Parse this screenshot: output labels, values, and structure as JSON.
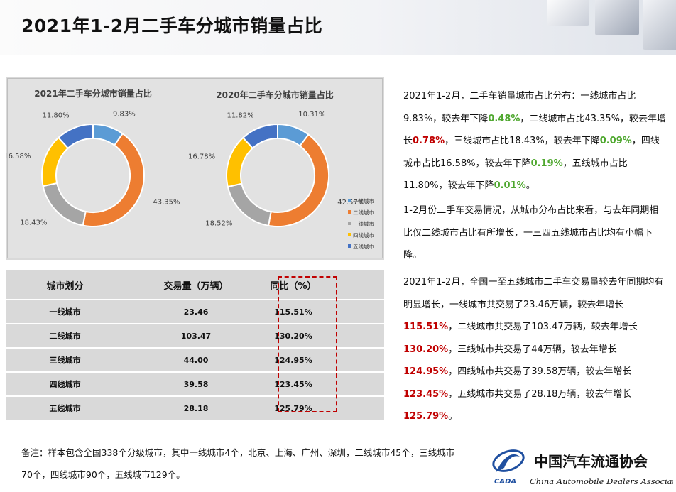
{
  "page": {
    "title": "2021年1-2月二手车分城市销量占比"
  },
  "colors": {
    "tier1": "#5b9bd5",
    "tier2": "#ed7d31",
    "tier3": "#a5a5a5",
    "tier4": "#ffc000",
    "tier5": "#4472c4",
    "green": "#4ea72e",
    "red": "#c00000"
  },
  "chart_data": [
    {
      "type": "pie",
      "title": "2021年二手车分城市销量占比",
      "categories": [
        "一线城市",
        "二线城市",
        "三线城市",
        "四线城市",
        "五线城市"
      ],
      "values": [
        9.83,
        43.35,
        18.43,
        16.58,
        11.8
      ],
      "labels": [
        "9.83%",
        "43.35%",
        "18.43%",
        "16.58%",
        "11.80%"
      ]
    },
    {
      "type": "pie",
      "title": "2020年二手车分城市销量占比",
      "categories": [
        "一线城市",
        "二线城市",
        "三线城市",
        "四线城市",
        "五线城市"
      ],
      "values": [
        10.31,
        42.57,
        18.52,
        16.78,
        11.82
      ],
      "labels": [
        "10.31%",
        "42.57%",
        "18.52%",
        "16.78%",
        "11.82%"
      ],
      "legend": "right"
    }
  ],
  "table": {
    "headers": [
      "城市划分",
      "交易量（万辆）",
      "同比（%）"
    ],
    "rows": [
      {
        "city": "一线城市",
        "volume": "23.46",
        "yoy": "115.51%"
      },
      {
        "city": "二线城市",
        "volume": "103.47",
        "yoy": "130.20%"
      },
      {
        "city": "三线城市",
        "volume": "44.00",
        "yoy": "124.95%"
      },
      {
        "city": "四线城市",
        "volume": "39.58",
        "yoy": "123.45%"
      },
      {
        "city": "五线城市",
        "volume": "28.18",
        "yoy": "125.79%"
      }
    ]
  },
  "para1": {
    "s1": "2021年1-2月，二手车销量城市占比分布：一线城市占比9.83%，较去年下降",
    "v1": "0.48%",
    "s2": "，二线城市占比43.35%，较去年增长",
    "v2": "0.78%",
    "s3": "，三线城市占比18.43%，较去年下降",
    "v3": "0.09%",
    "s4": "，四线城市占比16.58%，较去年下降",
    "v4": "0.19%",
    "s5": "，五线城市占比11.80%，较去年下降",
    "v5": "0.01%",
    "s6": "。"
  },
  "para2": "1-2月份二手车交易情况，从城市分布占比来看，与去年同期相比仅二线城市占比有所增长，一三四五线城市占比均有小幅下降。",
  "para3": {
    "s1": "2021年1-2月，全国一至五线城市二手车交易量较去年同期均有明显增长，一线城市共交易了23.46万辆，较去年增长",
    "v1": "115.51%",
    "s2": "，二线城市共交易了103.47万辆，较去年增长",
    "v2": "130.20%",
    "s3": "，三线城市共交易了44万辆，较去年增长",
    "v3": "124.95%",
    "s4": "，四线城市共交易了39.58万辆，较去年增长",
    "v4": "123.45%",
    "s5": "，五线城市共交易了28.18万辆，较去年增长",
    "v5": "125.79%",
    "s6": "。"
  },
  "note": "备注：样本包含全国338个分级城市，其中一线城市4个，北京、上海、广州、深圳，二线城市45个，三线城市70个，四线城市90个，五线城市129个。",
  "logo": {
    "cn": "中国汽车流通协会",
    "en": "China Automobile Dealers Association",
    "abbr": "CADA"
  }
}
